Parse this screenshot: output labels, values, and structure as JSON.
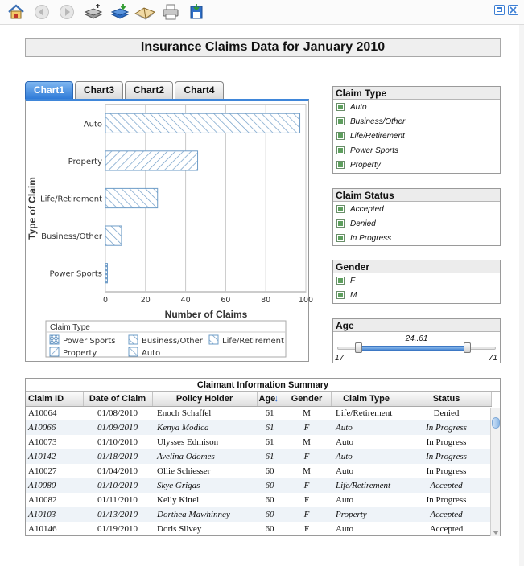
{
  "toolbar": {
    "buttons": [
      "home-icon",
      "back-icon",
      "forward-icon",
      "add-books-icon",
      "download-books-icon",
      "open-book-icon",
      "print-icon",
      "save-icon"
    ],
    "window_buttons": [
      "restore-icon",
      "close-icon"
    ]
  },
  "page": {
    "title": "Insurance Claims Data for January 2010"
  },
  "tabs": [
    "Chart1",
    "Chart3",
    "Chart2",
    "Chart4"
  ],
  "chart_data": {
    "type": "bar",
    "orientation": "horizontal",
    "categories": [
      "Auto",
      "Property",
      "Life/Retirement",
      "Business/Other",
      "Power Sports"
    ],
    "values": [
      97,
      46,
      26,
      8,
      1
    ],
    "xlabel": "Number of Claims",
    "ylabel": "Type of Claim",
    "xlim": [
      0,
      100
    ],
    "xticks": [
      0,
      20,
      40,
      60,
      80,
      100
    ],
    "grid": true,
    "legend": {
      "title": "Claim Type",
      "placement": "bottom",
      "items": [
        "Power Sports",
        "Business/Other",
        "Life/Retirement",
        "Property",
        "Auto"
      ]
    }
  },
  "filters": {
    "claim_type": {
      "title": "Claim Type",
      "items": [
        "Auto",
        "Business/Other",
        "Life/Retirement",
        "Power Sports",
        "Property"
      ]
    },
    "claim_status": {
      "title": "Claim Status",
      "items": [
        "Accepted",
        "Denied",
        "In Progress"
      ]
    },
    "gender": {
      "title": "Gender",
      "items": [
        "F",
        "M"
      ]
    },
    "age": {
      "title": "Age",
      "range_label": "24..61",
      "min_label": "17",
      "max_label": "71",
      "min": 17,
      "max": 71,
      "low": 24,
      "high": 61
    }
  },
  "table": {
    "title": "Claimant Information Summary",
    "columns": [
      "Claim ID",
      "Date of Claim",
      "Policy Holder",
      "Age",
      "Gender",
      "Claim Type",
      "Status"
    ],
    "rows": [
      [
        "A10064",
        "01/08/2010",
        "Enoch Schaffel",
        "61",
        "M",
        "Life/Retirement",
        "Denied"
      ],
      [
        "A10066",
        "01/09/2010",
        "Kenya Modica",
        "61",
        "F",
        "Auto",
        "In Progress"
      ],
      [
        "A10073",
        "01/10/2010",
        "Ulysses Edmison",
        "61",
        "M",
        "Auto",
        "In Progress"
      ],
      [
        "A10142",
        "01/18/2010",
        "Avelina Odomes",
        "61",
        "F",
        "Auto",
        "In Progress"
      ],
      [
        "A10027",
        "01/04/2010",
        "Ollie Schiesser",
        "60",
        "M",
        "Auto",
        "In Progress"
      ],
      [
        "A10080",
        "01/10/2010",
        "Skye Grigas",
        "60",
        "F",
        "Life/Retirement",
        "Accepted"
      ],
      [
        "A10082",
        "01/11/2010",
        "Kelly Kittel",
        "60",
        "F",
        "Auto",
        "In Progress"
      ],
      [
        "A10103",
        "01/13/2010",
        "Dorthea Mawhinney",
        "60",
        "F",
        "Property",
        "Accepted"
      ],
      [
        "A10146",
        "01/19/2010",
        "Doris Silvey",
        "60",
        "F",
        "Auto",
        "Accepted"
      ]
    ]
  }
}
